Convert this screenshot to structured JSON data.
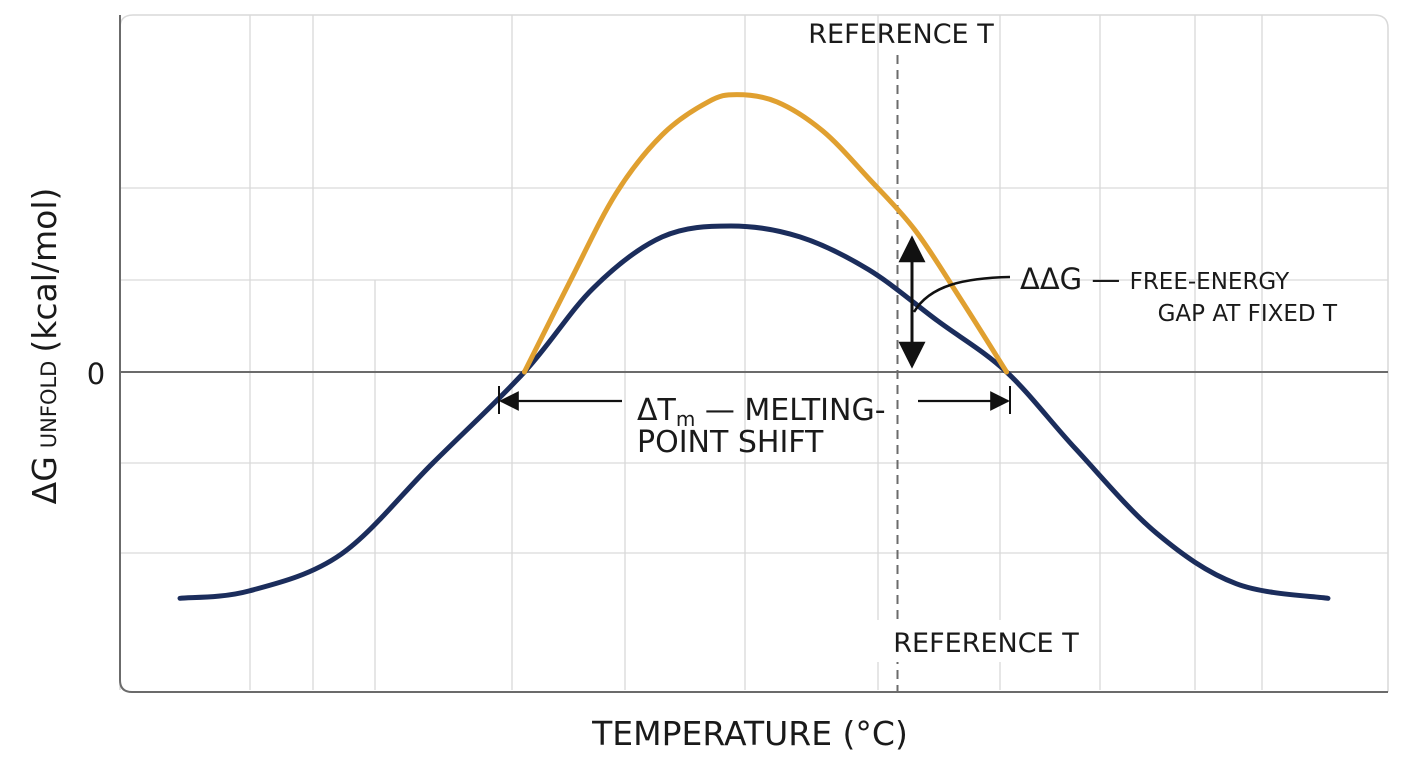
{
  "chart_data": {
    "type": "line",
    "title": "",
    "xlabel": "TEMPERATURE (°C)",
    "ylabel_main": "ΔG",
    "ylabel_sub": "UNFOLD",
    "ylabel_unit": "(kcal/mol)",
    "ytick_zero": "0",
    "x_unit": "temperature, unlabeled ticks (arbitrary units)",
    "xlim": [
      0,
      100
    ],
    "ylim": [
      -1.0,
      1.0
    ],
    "grid": true,
    "series": [
      {
        "color": "#1b2d5c",
        "points": [
          [
            0,
            -0.62
          ],
          [
            6,
            -0.6
          ],
          [
            14,
            -0.5
          ],
          [
            22,
            -0.25
          ],
          [
            30,
            0.0
          ],
          [
            36,
            0.23
          ],
          [
            42,
            0.37
          ],
          [
            48,
            0.4
          ],
          [
            54,
            0.37
          ],
          [
            60,
            0.28
          ],
          [
            66,
            0.14
          ],
          [
            72,
            0.0
          ],
          [
            78,
            -0.21
          ],
          [
            85,
            -0.44
          ],
          [
            92,
            -0.58
          ],
          [
            100,
            -0.62
          ]
        ]
      },
      {
        "color": "#e0a030",
        "points": [
          [
            30,
            0.0
          ],
          [
            34,
            0.25
          ],
          [
            38,
            0.49
          ],
          [
            42,
            0.65
          ],
          [
            46,
            0.74
          ],
          [
            48.5,
            0.76
          ],
          [
            52,
            0.74
          ],
          [
            56,
            0.66
          ],
          [
            60,
            0.53
          ],
          [
            64,
            0.39
          ],
          [
            68,
            0.2
          ],
          [
            72,
            0.0
          ]
        ]
      }
    ],
    "reference_line": {
      "x": 62.5,
      "label": "REFERENCE T"
    },
    "annotations": {
      "delta_tm_symbol": "ΔT",
      "delta_tm_sub": "m",
      "delta_tm_rest": " — MELTING-",
      "delta_tm_line2": "POINT SHIFT",
      "ddg_symbol": "ΔΔG — ",
      "ddg_rest": "FREE-ENERGY",
      "ddg_line2": "GAP AT FIXED T"
    },
    "colors": {
      "axis": "#6b6b6b",
      "grid": "#d9d9d9",
      "reference": "#6b6b6b",
      "text": "#1a1a1a"
    }
  }
}
